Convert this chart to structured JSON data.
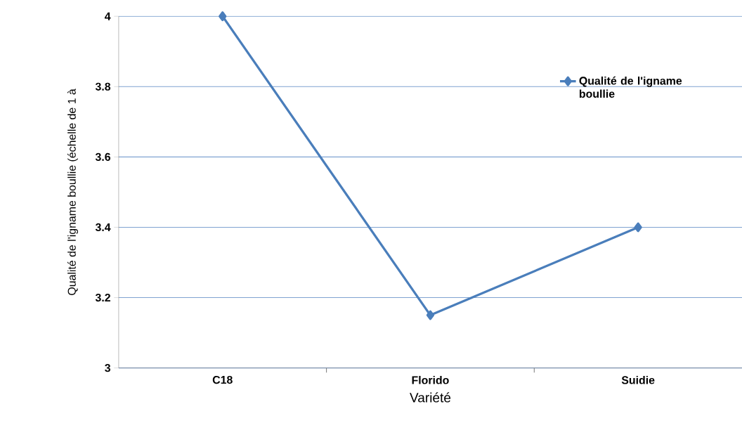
{
  "chart_data": {
    "type": "line",
    "xlabel": "Variété",
    "ylabel": "Qualité de l'igname boullie  (échelle de 1 à",
    "categories": [
      "C18",
      "Florido",
      "Suidie"
    ],
    "series": [
      {
        "name": "Qualité de l'igname boullie",
        "color": "#4a7ebb",
        "values": [
          4,
          3.15,
          3.4
        ]
      }
    ],
    "ylim": [
      3,
      4
    ],
    "yticks": [
      3,
      3.2,
      3.4,
      3.6,
      3.8,
      4
    ],
    "grid": "y",
    "legend": "top right",
    "marker": "diamond",
    "line_style": "solid"
  }
}
